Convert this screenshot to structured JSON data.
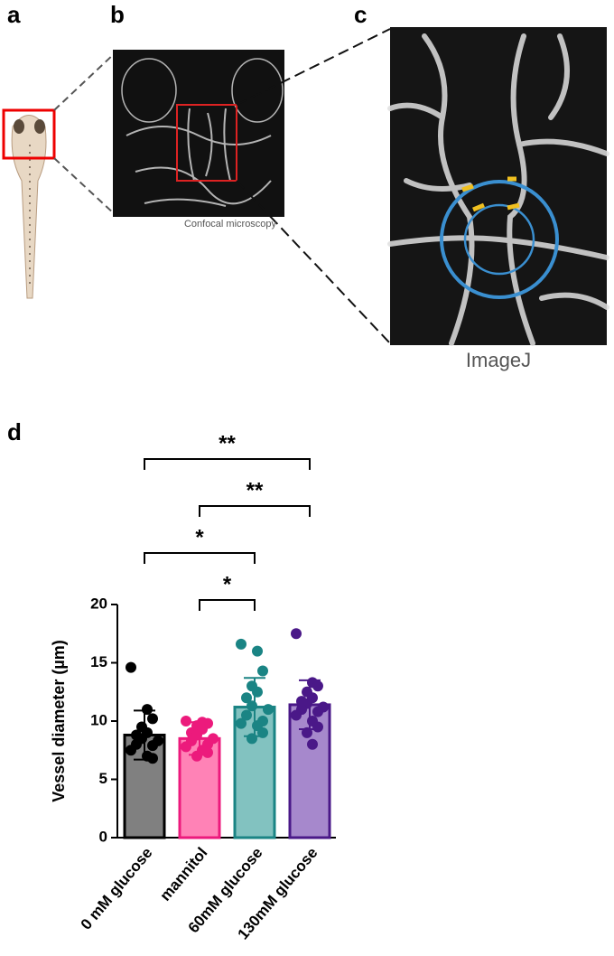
{
  "panels": {
    "a": "a",
    "b": "b",
    "c": "c",
    "d": "d"
  },
  "captions": {
    "confocal": "Confocal microscopy",
    "imagej": "ImageJ"
  },
  "chart_data": {
    "type": "bar",
    "ylabel": "Vessel diameter (µm)",
    "categories": [
      "0 mM glucose",
      "mannitol",
      "60mM glucose",
      "130mM glucose"
    ],
    "values": [
      8.8,
      8.5,
      11.2,
      11.4
    ],
    "errors": [
      2.1,
      1.4,
      2.5,
      2.1
    ],
    "bar_colors": [
      "#808080",
      "#ff82b6",
      "#82c2c0",
      "#a688cc"
    ],
    "edge_colors": [
      "#000000",
      "#ec1a7c",
      "#1a8484",
      "#4a1888"
    ],
    "points": [
      [
        14.6,
        11.0,
        10.2,
        9.5,
        9.0,
        8.8,
        8.5,
        8.3,
        8.0,
        7.9,
        7.5,
        7.0,
        6.8
      ],
      [
        10.0,
        9.9,
        9.8,
        9.6,
        9.3,
        9.0,
        8.8,
        8.5,
        8.3,
        8.0,
        7.8,
        7.5,
        7.3,
        7.0
      ],
      [
        16.6,
        16.0,
        14.3,
        13.0,
        12.5,
        12.0,
        11.3,
        11.0,
        10.5,
        10.0,
        9.8,
        9.6,
        9.0,
        8.5
      ],
      [
        17.5,
        13.3,
        13.0,
        12.5,
        12.0,
        11.7,
        11.5,
        11.2,
        11.0,
        10.8,
        10.5,
        10.0,
        9.5,
        9.0,
        8.0
      ]
    ],
    "ylim": [
      0,
      20
    ],
    "yticks": [
      0,
      5,
      10,
      15,
      20
    ],
    "significance": [
      {
        "label": "**",
        "from": 0,
        "to": 3
      },
      {
        "label": "**",
        "from": 1,
        "to": 3
      },
      {
        "label": "*",
        "from": 0,
        "to": 2
      },
      {
        "label": "*",
        "from": 1,
        "to": 2
      }
    ]
  }
}
